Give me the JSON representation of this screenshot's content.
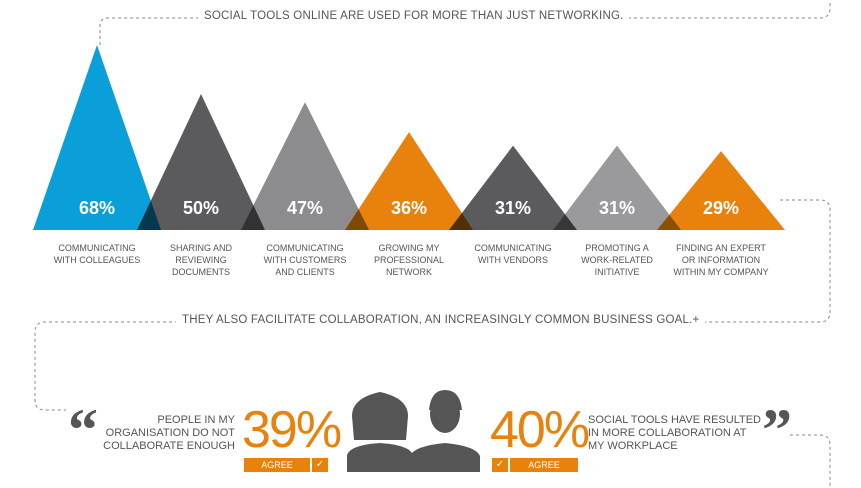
{
  "chart_data": {
    "type": "triangle",
    "title": "SOCIAL TOOLS ONLINE ARE USED FOR MORE THAN JUST NETWORKING.",
    "categories": [
      "COMMUNICATING\nWITH COLLEAGUES",
      "SHARING AND\nREVIEWING\nDOCUMENTS",
      "COMMUNICATING\nWITH CUSTOMERS\nAND CLIENTS",
      "GROWING MY\nPROFESSIONAL\nNETWORK",
      "COMMUNICATING\nWITH VENDORS",
      "PROMOTING A\nWORK-RELATED\nINITIATIVE",
      "FINDING AN EXPERT\nOR INFORMATION\nWITHIN MY COMPANY"
    ],
    "values": [
      68,
      50,
      47,
      36,
      31,
      31,
      29
    ],
    "value_labels": [
      "68%",
      "50%",
      "47%",
      "36%",
      "31%",
      "31%",
      "29%"
    ],
    "colors": [
      "#0a9fd8",
      "#5b5b5d",
      "#8c8c8e",
      "#e8820c",
      "#5b5b5d",
      "#9a9a9c",
      "#e8820c"
    ]
  },
  "subtitle": "THEY ALSO FACILITATE COLLABORATION, AN INCREASINGLY COMMON BUSINESS GOAL.+",
  "stats": [
    {
      "text": "PEOPLE IN MY\nORGANISATION DO NOT\nCOLLABORATE ENOUGH",
      "value": "39%",
      "badge": "AGREE"
    },
    {
      "text": "SOCIAL TOOLS HAVE RESULTED\nIN MORE COLLABORATION AT\nMY WORKPLACE",
      "value": "40%",
      "badge": "AGREE"
    }
  ]
}
